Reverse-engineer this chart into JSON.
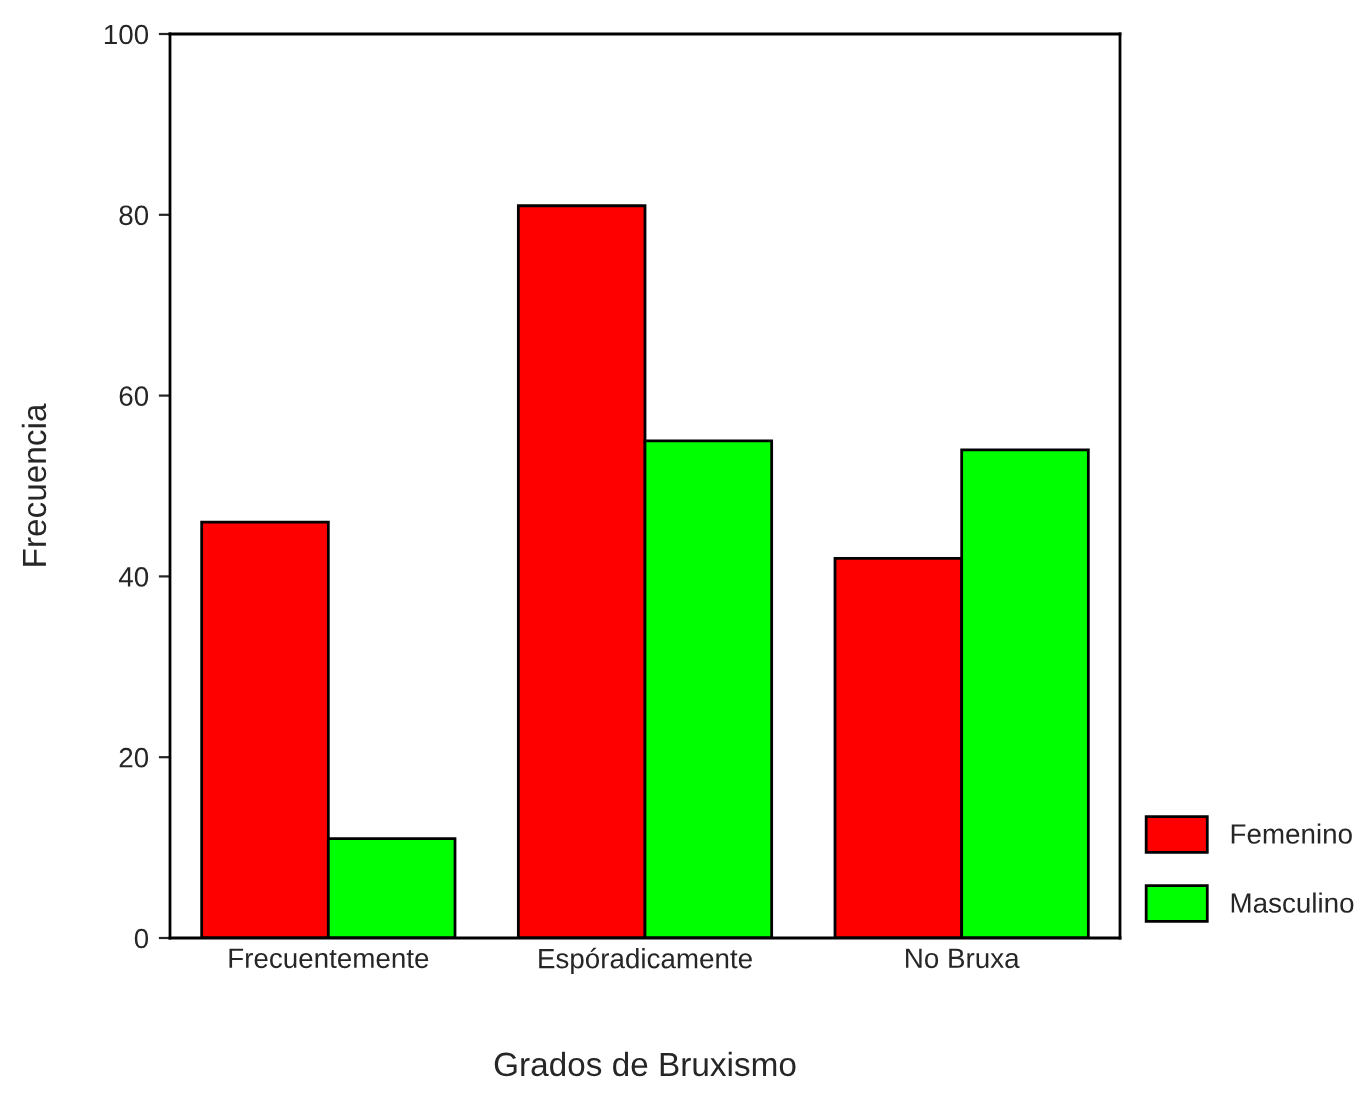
{
  "chart_data": {
    "type": "bar",
    "xlabel": "Grados de Bruxismo",
    "ylabel": "Frecuencia",
    "categories": [
      "Frecuentemente",
      "Espóradicamente",
      "No Bruxa"
    ],
    "series": [
      {
        "name": "Femenino",
        "color": "#ff0000",
        "values": [
          46,
          81,
          42
        ]
      },
      {
        "name": "Masculino",
        "color": "#00ff00",
        "values": [
          11,
          55,
          54
        ]
      }
    ],
    "ylim": [
      0,
      100
    ],
    "yticks": [
      0,
      20,
      40,
      60,
      80,
      100
    ],
    "grid": false,
    "legend": "bottom right"
  }
}
